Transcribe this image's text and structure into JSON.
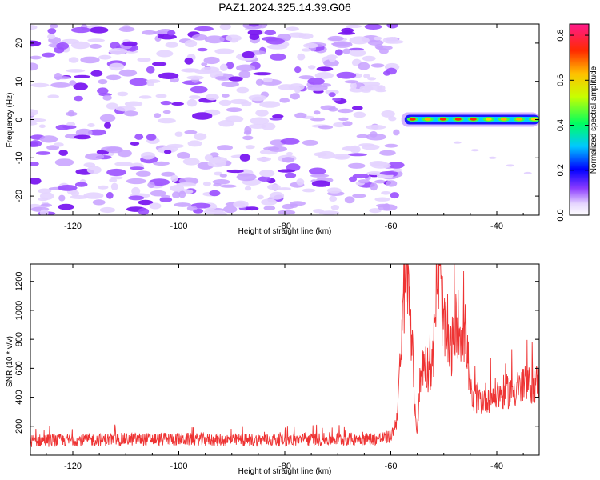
{
  "chart_data": [
    {
      "type": "heatmap",
      "title": "PAZ1.2024.325.14.39.G06",
      "xlabel": "Height of straight line (km)",
      "ylabel": "Frequency (Hz)",
      "xlim": [
        -128,
        -32
      ],
      "ylim": [
        -25,
        25
      ],
      "x_ticks": [
        -120,
        -100,
        -80,
        -60,
        -40
      ],
      "y_ticks": [
        -20,
        -10,
        0,
        10,
        20
      ],
      "colorbar": {
        "label": "Normalized spectral amplitude",
        "range": [
          0,
          0.85
        ],
        "ticks": [
          0.0,
          0.2,
          0.4,
          0.6,
          0.8
        ],
        "colormap": "white-purple-blue-cyan-green-yellow-orange-red-magenta"
      },
      "regions": [
        {
          "x_range": [
            -128,
            -58
          ],
          "freq_range": [
            -25,
            25
          ],
          "amplitude_range": [
            0.0,
            0.15
          ],
          "pattern": "scattered noise"
        },
        {
          "x_range": [
            -58,
            -32
          ],
          "freq_center": 0,
          "freq_width": 2,
          "amplitude_range": [
            0.2,
            0.8
          ],
          "pattern": "narrow band at 0 Hz"
        }
      ]
    },
    {
      "type": "line",
      "xlabel": "Height of straight line (km)",
      "ylabel": "SNR (10 * v/v)",
      "xlim": [
        -128,
        -32
      ],
      "ylim": [
        0,
        1320
      ],
      "x_ticks": [
        -120,
        -100,
        -80,
        -60,
        -40
      ],
      "y_ticks": [
        200,
        400,
        600,
        800,
        1000,
        1200
      ],
      "color": "#ee3333",
      "x": [
        -128,
        -120,
        -110,
        -100,
        -90,
        -80,
        -70,
        -62,
        -60,
        -59,
        -58,
        -57.5,
        -57,
        -56.5,
        -56,
        -55.5,
        -55,
        -54.5,
        -54,
        -53,
        -52,
        -51.5,
        -51,
        -50.5,
        -50,
        -49,
        -48,
        -47.5,
        -47,
        -46.5,
        -46,
        -45.5,
        -45,
        -44.5,
        -44,
        -43,
        -42,
        -40,
        -38,
        -36,
        -34,
        -32
      ],
      "values": [
        100,
        105,
        110,
        110,
        105,
        105,
        110,
        115,
        130,
        220,
        700,
        1100,
        1250,
        1150,
        800,
        300,
        180,
        500,
        650,
        600,
        650,
        1150,
        1270,
        1100,
        900,
        700,
        800,
        950,
        850,
        900,
        850,
        700,
        450,
        350,
        400,
        380,
        400,
        420,
        440,
        460,
        480,
        500
      ]
    }
  ]
}
